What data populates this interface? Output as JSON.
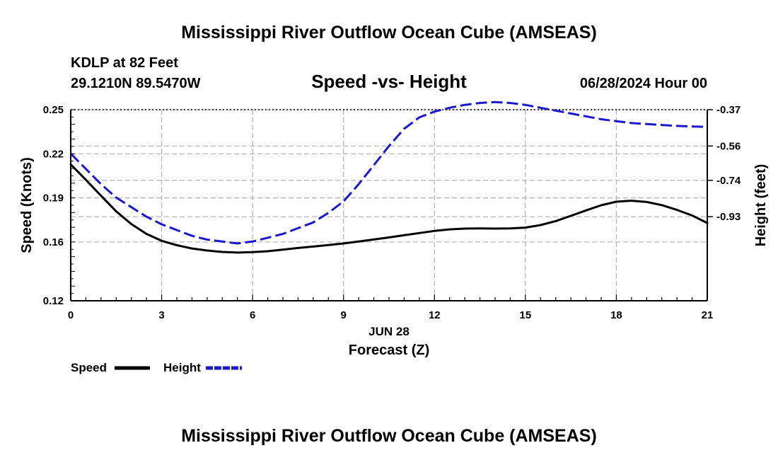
{
  "header": {
    "title": "Mississippi River Outflow Ocean Cube (AMSEAS)",
    "station": "KDLP at 82 Feet",
    "coords": "29.1210N  89.5470W",
    "date": "06/28/2024 Hour 00"
  },
  "footer": {
    "title": "Mississippi River Outflow Ocean Cube (AMSEAS)"
  },
  "colors": {
    "speed": "#000000",
    "height": "#1a1acc",
    "grid": "#b0b0b0"
  },
  "chart_data": {
    "type": "line",
    "title": "Speed -vs- Height",
    "xlabel": "Forecast (Z)",
    "date_label": "JUN 28",
    "ylabel_left": "Speed (Knots)",
    "ylabel_right": "Height (feet)",
    "xlim": [
      0,
      21
    ],
    "ylim_left": [
      0.12,
      0.25
    ],
    "ylim_right": [
      -1.37,
      -0.37
    ],
    "x_ticks": [
      0,
      3,
      6,
      9,
      12,
      15,
      18,
      21
    ],
    "x_tick_labels": [
      "0",
      "3",
      "6",
      "9",
      "12",
      "15",
      "18",
      "21"
    ],
    "y_left_ticks": [
      0.12,
      0.16,
      0.19,
      0.22,
      0.25
    ],
    "y_left_tick_labels": [
      "0.12",
      "0.16",
      "0.19",
      "0.22",
      "0.25"
    ],
    "y_right_ticks": [
      -0.37,
      -0.56,
      -0.74,
      -0.93
    ],
    "y_right_tick_labels": [
      "-0.37",
      "-0.56",
      "-0.74",
      "-0.93"
    ],
    "legend": [
      "Speed",
      "Height"
    ],
    "series": [
      {
        "name": "Speed",
        "axis": "left",
        "x": [
          0,
          0.5,
          1,
          1.5,
          2,
          2.5,
          3,
          3.5,
          4,
          4.5,
          5,
          5.5,
          6,
          6.5,
          7,
          7.5,
          8,
          8.5,
          9,
          9.5,
          10,
          10.5,
          11,
          11.5,
          12,
          12.5,
          13,
          13.5,
          14,
          14.5,
          15,
          15.5,
          16,
          16.5,
          17,
          17.5,
          18,
          18.5,
          19,
          19.5,
          20,
          20.5,
          21
        ],
        "values": [
          0.2128,
          0.2023,
          0.1914,
          0.1808,
          0.1722,
          0.1655,
          0.1608,
          0.1578,
          0.1556,
          0.1542,
          0.1532,
          0.1528,
          0.1531,
          0.1537,
          0.1548,
          0.1559,
          0.1569,
          0.1579,
          0.159,
          0.1603,
          0.1617,
          0.1631,
          0.1646,
          0.1661,
          0.1675,
          0.1686,
          0.1691,
          0.1692,
          0.1691,
          0.1692,
          0.1698,
          0.1715,
          0.1742,
          0.1778,
          0.1815,
          0.185,
          0.1874,
          0.1881,
          0.1872,
          0.1851,
          0.1818,
          0.178,
          0.1729
        ]
      },
      {
        "name": "Height",
        "axis": "right",
        "x": [
          0,
          0.5,
          1,
          1.5,
          2,
          2.5,
          3,
          3.5,
          4,
          4.5,
          5,
          5.5,
          6,
          6.5,
          7,
          7.5,
          8,
          8.5,
          9,
          9.5,
          10,
          10.5,
          11,
          11.5,
          12,
          12.5,
          13,
          13.5,
          14,
          14.5,
          15,
          15.5,
          16,
          16.5,
          17,
          17.5,
          18,
          18.5,
          19,
          19.5,
          20,
          20.5,
          21
        ],
        "values": [
          -0.6,
          -0.68,
          -0.76,
          -0.83,
          -0.88,
          -0.93,
          -0.97,
          -1.0,
          -1.03,
          -1.05,
          -1.06,
          -1.07,
          -1.06,
          -1.04,
          -1.02,
          -0.99,
          -0.96,
          -0.91,
          -0.85,
          -0.76,
          -0.66,
          -0.56,
          -0.47,
          -0.41,
          -0.38,
          -0.36,
          -0.345,
          -0.335,
          -0.33,
          -0.335,
          -0.345,
          -0.36,
          -0.375,
          -0.39,
          -0.405,
          -0.42,
          -0.43,
          -0.44,
          -0.445,
          -0.45,
          -0.455,
          -0.458,
          -0.46
        ]
      }
    ]
  }
}
